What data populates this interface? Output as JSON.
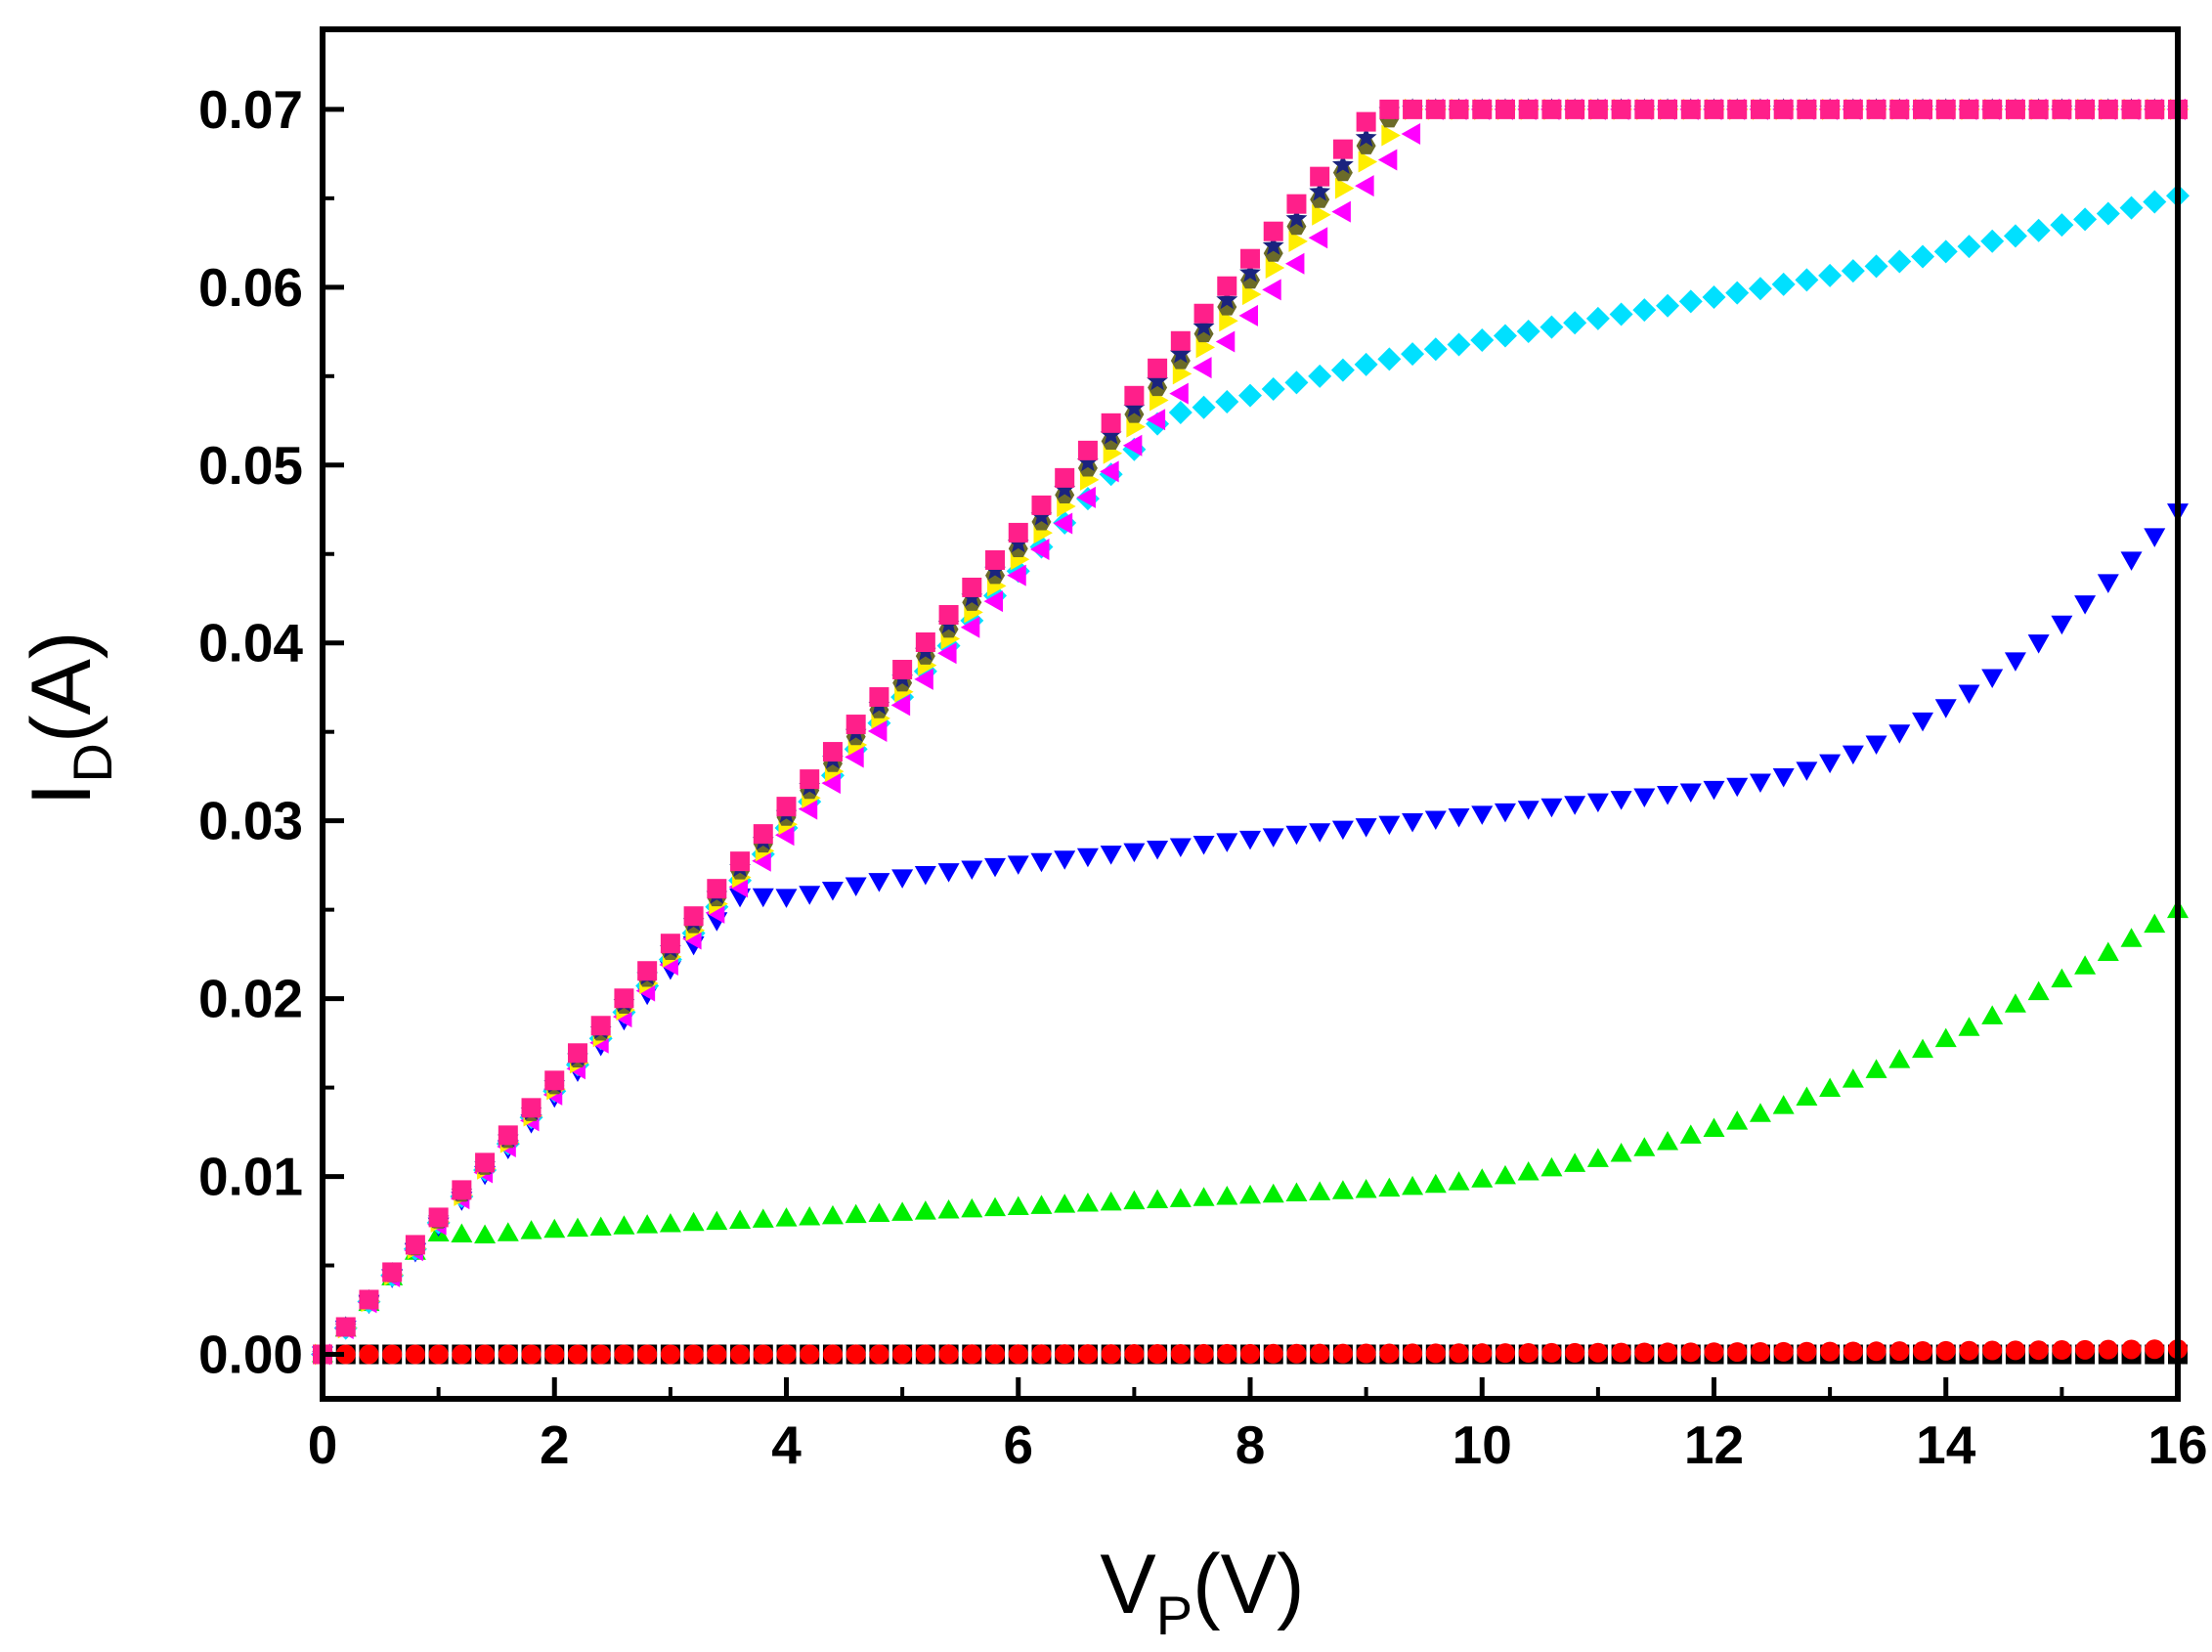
{
  "chart_data": {
    "type": "scatter",
    "title": "",
    "xlabel": {
      "main": "V",
      "sub": "P",
      "unit": "(V)"
    },
    "ylabel": {
      "main": "I",
      "sub": "D",
      "unit": "(A)"
    },
    "xlim": [
      0,
      16
    ],
    "ylim": [
      -0.0025,
      0.0745
    ],
    "xticks": [
      "0",
      "2",
      "4",
      "6",
      "8",
      "10",
      "12",
      "14",
      "16"
    ],
    "yticks": [
      "0.00",
      "0.01",
      "0.02",
      "0.03",
      "0.04",
      "0.05",
      "0.06",
      "0.07"
    ],
    "grid": false,
    "legend": "none",
    "x_step": 0.2,
    "series": [
      {
        "name": "black-square",
        "marker": "square",
        "color": "#000000",
        "kind": "flat",
        "model": {
          "end": 0.0
        }
      },
      {
        "name": "red-circle",
        "marker": "circle",
        "color": "#ff0000",
        "kind": "flat",
        "model": {
          "end": 0.0003
        }
      },
      {
        "name": "green-up-triangle",
        "marker": "triangle-up",
        "color": "#00ee00",
        "kind": "saturating",
        "model": {
          "gain": 0.0072,
          "knee": 1.4,
          "sat": 0.0068,
          "slope_mid": 0.00032,
          "bump": 0.0135,
          "bump_start": 9.0
        }
      },
      {
        "name": "blue-down-triangle",
        "marker": "triangle-down",
        "color": "#0000ff",
        "kind": "saturating",
        "model": {
          "gain": 0.00725,
          "knee": 4.0,
          "sat": 0.0262,
          "slope_mid": 0.0007,
          "bump": 0.0128,
          "bump_start": 12.0
        }
      },
      {
        "name": "cyan-diamond",
        "marker": "diamond",
        "color": "#00e0ff",
        "kind": "saturating",
        "model": {
          "gain": 0.0074,
          "knee": 7.3,
          "sat": 0.0538,
          "slope_mid": 0.0012,
          "bump": 0.0009,
          "bump_start": 12.5
        }
      },
      {
        "name": "magenta-left-triangle",
        "marker": "triangle-left",
        "color": "#ff00ff",
        "kind": "linear-clip",
        "model": {
          "gain": 0.0073,
          "cap": 0.07
        }
      },
      {
        "name": "yellow-right-triangle",
        "marker": "triangle-right",
        "color": "#ffee00",
        "kind": "linear-clip",
        "model": {
          "gain": 0.00745,
          "cap": 0.07
        }
      },
      {
        "name": "olive-hexagon",
        "marker": "hexagon",
        "color": "#6b6b28",
        "kind": "linear-clip",
        "model": {
          "gain": 0.00755,
          "cap": 0.07
        }
      },
      {
        "name": "navy-star",
        "marker": "star",
        "color": "#1a237e",
        "kind": "linear-clip",
        "model": {
          "gain": 0.0076,
          "cap": 0.07
        }
      },
      {
        "name": "pink-square",
        "marker": "square",
        "color": "#ff1f8a",
        "kind": "linear-clip",
        "model": {
          "gain": 0.0077,
          "cap": 0.07
        }
      }
    ]
  }
}
